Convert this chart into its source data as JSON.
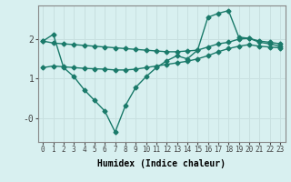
{
  "title": "",
  "xlabel": "Humidex (Indice chaleur)",
  "ylabel": "",
  "bg_color": "#d8f0f0",
  "grid_color": "#c8e0e0",
  "line_color": "#1a7a6a",
  "line1_y": [
    1.95,
    2.12,
    1.28,
    1.05,
    0.72,
    0.45,
    0.18,
    -0.35,
    0.32,
    0.78,
    1.05,
    1.28,
    1.45,
    1.58,
    1.5,
    1.72,
    2.55,
    2.65,
    2.72,
    2.05,
    2.02,
    1.92,
    1.88,
    1.82
  ],
  "line2_y": [
    1.95,
    1.9,
    1.88,
    1.86,
    1.84,
    1.82,
    1.8,
    1.78,
    1.76,
    1.74,
    1.72,
    1.7,
    1.68,
    1.68,
    1.7,
    1.72,
    1.8,
    1.88,
    1.92,
    2.0,
    2.02,
    1.95,
    1.92,
    1.88
  ],
  "line3_y": [
    1.28,
    1.32,
    1.3,
    1.28,
    1.26,
    1.25,
    1.24,
    1.22,
    1.22,
    1.24,
    1.28,
    1.32,
    1.36,
    1.4,
    1.44,
    1.5,
    1.58,
    1.68,
    1.76,
    1.82,
    1.86,
    1.82,
    1.8,
    1.78
  ],
  "xlim": [
    -0.5,
    23.5
  ],
  "ylim": [
    -0.6,
    2.85
  ],
  "ytick_vals": [
    0,
    1,
    2
  ],
  "ytick_labels": [
    "-0",
    "1",
    "2"
  ],
  "xtick_vals": [
    0,
    1,
    2,
    3,
    4,
    5,
    6,
    7,
    8,
    9,
    10,
    11,
    12,
    13,
    14,
    15,
    16,
    17,
    18,
    19,
    20,
    21,
    22,
    23
  ],
  "marker": "D",
  "markersize": 2.5,
  "linewidth": 1.0,
  "xlabel_fontsize": 7,
  "tick_fontsize": 5.5,
  "ytick_fontsize": 7
}
